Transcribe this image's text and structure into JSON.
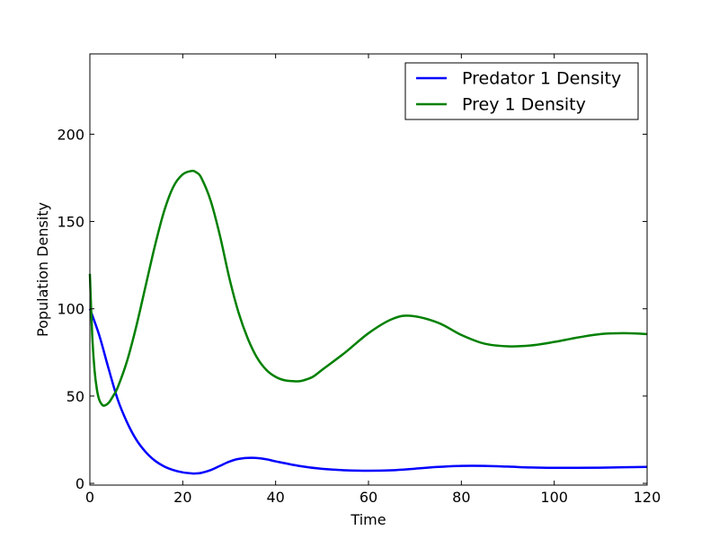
{
  "chart_data": {
    "type": "line",
    "title": "",
    "xlabel": "Time",
    "ylabel": "Population Density",
    "xlim": [
      0,
      120
    ],
    "ylim": [
      -1,
      246
    ],
    "xticks": [
      0,
      20,
      40,
      60,
      80,
      100,
      120
    ],
    "yticks": [
      0,
      50,
      100,
      150,
      200
    ],
    "grid": false,
    "legend_position": "top-right",
    "series": [
      {
        "name": "Predator 1 Density",
        "color": "#0000ff",
        "x": [
          0,
          2,
          4,
          6,
          8,
          10,
          12,
          14,
          16,
          18,
          20,
          22,
          23,
          24,
          26,
          28,
          30,
          32,
          35,
          38,
          40,
          45,
          50,
          55,
          60,
          65,
          70,
          75,
          80,
          85,
          90,
          95,
          100,
          105,
          110,
          115,
          120
        ],
        "y": [
          100,
          85,
          66,
          48,
          35,
          25,
          18,
          13,
          9.7,
          7.6,
          6.3,
          5.7,
          5.7,
          6.0,
          7.6,
          10.0,
          12.4,
          14.0,
          14.6,
          13.8,
          12.6,
          10.0,
          8.3,
          7.5,
          7.2,
          7.5,
          8.4,
          9.4,
          10.0,
          10.0,
          9.6,
          9.1,
          8.9,
          8.9,
          9.0,
          9.2,
          9.4
        ]
      },
      {
        "name": "Prey 1 Density",
        "color": "#008000",
        "x": [
          0,
          0.5,
          1,
          1.5,
          2,
          2.5,
          3,
          4,
          5,
          6,
          8,
          10,
          12,
          14,
          16,
          18,
          20,
          22,
          23,
          24,
          26,
          28,
          30,
          32,
          34,
          36,
          38,
          40,
          42,
          44,
          45,
          46,
          48,
          50,
          55,
          60,
          65,
          69,
          75,
          80,
          85,
          90,
          95,
          100,
          105,
          110,
          115,
          120
        ],
        "y": [
          120,
          85,
          65,
          54,
          48,
          45.5,
          44.5,
          46,
          50,
          55,
          70,
          90,
          113,
          136,
          156,
          170,
          177,
          179,
          178,
          175,
          162,
          142,
          118,
          98,
          83,
          72,
          65,
          61,
          59,
          58.5,
          58.5,
          59,
          61,
          65,
          75,
          86,
          94,
          96,
          92,
          85,
          80,
          78.5,
          79,
          81,
          83.5,
          85.5,
          86,
          85.5
        ]
      }
    ]
  }
}
